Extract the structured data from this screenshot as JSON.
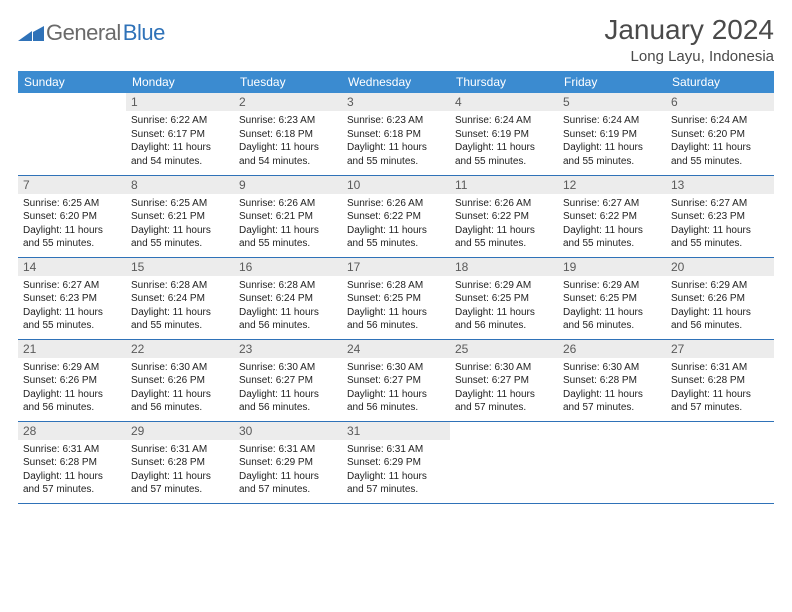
{
  "logo": {
    "part1": "General",
    "part2": "Blue"
  },
  "title": "January 2024",
  "location": "Long Layu, Indonesia",
  "headerColor": "#3b8bd0",
  "weekdays": [
    "Sunday",
    "Monday",
    "Tuesday",
    "Wednesday",
    "Thursday",
    "Friday",
    "Saturday"
  ],
  "weeks": [
    [
      {
        "empty": true
      },
      {
        "num": "1",
        "sunrise": "Sunrise: 6:22 AM",
        "sunset": "Sunset: 6:17 PM",
        "daylight": "Daylight: 11 hours and 54 minutes."
      },
      {
        "num": "2",
        "sunrise": "Sunrise: 6:23 AM",
        "sunset": "Sunset: 6:18 PM",
        "daylight": "Daylight: 11 hours and 54 minutes."
      },
      {
        "num": "3",
        "sunrise": "Sunrise: 6:23 AM",
        "sunset": "Sunset: 6:18 PM",
        "daylight": "Daylight: 11 hours and 55 minutes."
      },
      {
        "num": "4",
        "sunrise": "Sunrise: 6:24 AM",
        "sunset": "Sunset: 6:19 PM",
        "daylight": "Daylight: 11 hours and 55 minutes."
      },
      {
        "num": "5",
        "sunrise": "Sunrise: 6:24 AM",
        "sunset": "Sunset: 6:19 PM",
        "daylight": "Daylight: 11 hours and 55 minutes."
      },
      {
        "num": "6",
        "sunrise": "Sunrise: 6:24 AM",
        "sunset": "Sunset: 6:20 PM",
        "daylight": "Daylight: 11 hours and 55 minutes."
      }
    ],
    [
      {
        "num": "7",
        "sunrise": "Sunrise: 6:25 AM",
        "sunset": "Sunset: 6:20 PM",
        "daylight": "Daylight: 11 hours and 55 minutes."
      },
      {
        "num": "8",
        "sunrise": "Sunrise: 6:25 AM",
        "sunset": "Sunset: 6:21 PM",
        "daylight": "Daylight: 11 hours and 55 minutes."
      },
      {
        "num": "9",
        "sunrise": "Sunrise: 6:26 AM",
        "sunset": "Sunset: 6:21 PM",
        "daylight": "Daylight: 11 hours and 55 minutes."
      },
      {
        "num": "10",
        "sunrise": "Sunrise: 6:26 AM",
        "sunset": "Sunset: 6:22 PM",
        "daylight": "Daylight: 11 hours and 55 minutes."
      },
      {
        "num": "11",
        "sunrise": "Sunrise: 6:26 AM",
        "sunset": "Sunset: 6:22 PM",
        "daylight": "Daylight: 11 hours and 55 minutes."
      },
      {
        "num": "12",
        "sunrise": "Sunrise: 6:27 AM",
        "sunset": "Sunset: 6:22 PM",
        "daylight": "Daylight: 11 hours and 55 minutes."
      },
      {
        "num": "13",
        "sunrise": "Sunrise: 6:27 AM",
        "sunset": "Sunset: 6:23 PM",
        "daylight": "Daylight: 11 hours and 55 minutes."
      }
    ],
    [
      {
        "num": "14",
        "sunrise": "Sunrise: 6:27 AM",
        "sunset": "Sunset: 6:23 PM",
        "daylight": "Daylight: 11 hours and 55 minutes."
      },
      {
        "num": "15",
        "sunrise": "Sunrise: 6:28 AM",
        "sunset": "Sunset: 6:24 PM",
        "daylight": "Daylight: 11 hours and 55 minutes."
      },
      {
        "num": "16",
        "sunrise": "Sunrise: 6:28 AM",
        "sunset": "Sunset: 6:24 PM",
        "daylight": "Daylight: 11 hours and 56 minutes."
      },
      {
        "num": "17",
        "sunrise": "Sunrise: 6:28 AM",
        "sunset": "Sunset: 6:25 PM",
        "daylight": "Daylight: 11 hours and 56 minutes."
      },
      {
        "num": "18",
        "sunrise": "Sunrise: 6:29 AM",
        "sunset": "Sunset: 6:25 PM",
        "daylight": "Daylight: 11 hours and 56 minutes."
      },
      {
        "num": "19",
        "sunrise": "Sunrise: 6:29 AM",
        "sunset": "Sunset: 6:25 PM",
        "daylight": "Daylight: 11 hours and 56 minutes."
      },
      {
        "num": "20",
        "sunrise": "Sunrise: 6:29 AM",
        "sunset": "Sunset: 6:26 PM",
        "daylight": "Daylight: 11 hours and 56 minutes."
      }
    ],
    [
      {
        "num": "21",
        "sunrise": "Sunrise: 6:29 AM",
        "sunset": "Sunset: 6:26 PM",
        "daylight": "Daylight: 11 hours and 56 minutes."
      },
      {
        "num": "22",
        "sunrise": "Sunrise: 6:30 AM",
        "sunset": "Sunset: 6:26 PM",
        "daylight": "Daylight: 11 hours and 56 minutes."
      },
      {
        "num": "23",
        "sunrise": "Sunrise: 6:30 AM",
        "sunset": "Sunset: 6:27 PM",
        "daylight": "Daylight: 11 hours and 56 minutes."
      },
      {
        "num": "24",
        "sunrise": "Sunrise: 6:30 AM",
        "sunset": "Sunset: 6:27 PM",
        "daylight": "Daylight: 11 hours and 56 minutes."
      },
      {
        "num": "25",
        "sunrise": "Sunrise: 6:30 AM",
        "sunset": "Sunset: 6:27 PM",
        "daylight": "Daylight: 11 hours and 57 minutes."
      },
      {
        "num": "26",
        "sunrise": "Sunrise: 6:30 AM",
        "sunset": "Sunset: 6:28 PM",
        "daylight": "Daylight: 11 hours and 57 minutes."
      },
      {
        "num": "27",
        "sunrise": "Sunrise: 6:31 AM",
        "sunset": "Sunset: 6:28 PM",
        "daylight": "Daylight: 11 hours and 57 minutes."
      }
    ],
    [
      {
        "num": "28",
        "sunrise": "Sunrise: 6:31 AM",
        "sunset": "Sunset: 6:28 PM",
        "daylight": "Daylight: 11 hours and 57 minutes."
      },
      {
        "num": "29",
        "sunrise": "Sunrise: 6:31 AM",
        "sunset": "Sunset: 6:28 PM",
        "daylight": "Daylight: 11 hours and 57 minutes."
      },
      {
        "num": "30",
        "sunrise": "Sunrise: 6:31 AM",
        "sunset": "Sunset: 6:29 PM",
        "daylight": "Daylight: 11 hours and 57 minutes."
      },
      {
        "num": "31",
        "sunrise": "Sunrise: 6:31 AM",
        "sunset": "Sunset: 6:29 PM",
        "daylight": "Daylight: 11 hours and 57 minutes."
      },
      {
        "empty": true
      },
      {
        "empty": true
      },
      {
        "empty": true
      }
    ]
  ]
}
